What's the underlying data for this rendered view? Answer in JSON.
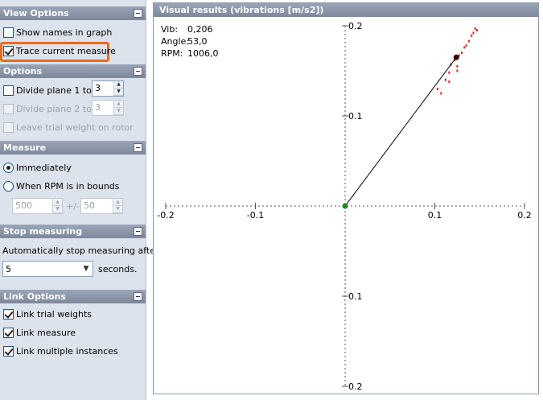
{
  "view_options": {
    "title": "View Options",
    "show_names_label": "Show names in graph",
    "show_names_checked": false,
    "trace_label": "Trace current measure",
    "trace_checked": true
  },
  "options": {
    "title": "Options",
    "divide1_label": "Divide plane 1 to",
    "divide1_value": "3",
    "divide2_label": "Divide plane 2 to",
    "divide2_value": "3",
    "leave_label": "Leave trial weight on rotor"
  },
  "measure": {
    "title": "Measure",
    "immediately_label": "Immediately",
    "rpm_label": "When RPM is in bounds",
    "rpm_value": "500",
    "tolerance_sep": "+/-",
    "tolerance_value": "50"
  },
  "stop": {
    "title": "Stop measuring",
    "desc": "Automatically stop measuring after",
    "value": "5",
    "unit": "seconds."
  },
  "link": {
    "title": "Link Options",
    "trial_label": "Link trial weights",
    "measure_label": "Link measure",
    "multi_label": "Link multiple instances"
  },
  "graph": {
    "title": "Visual results (vibrations [m/s2])",
    "vib_label": "Vib:",
    "vib_value": "0,206",
    "angle_label": "Angle:",
    "angle_value": "53,0",
    "rpm_label": "RPM:",
    "rpm_value": "1006,0"
  },
  "chart_data": {
    "type": "scatter",
    "xlim": [
      -0.2,
      0.2
    ],
    "ylim": [
      -0.2,
      0.2
    ],
    "x_ticks": [
      "-0.2",
      "-0.1",
      "0.1",
      "0.2"
    ],
    "y_ticks": [
      "0.2",
      "0.1",
      "0.1",
      "0.2"
    ],
    "grid": false,
    "origin_point": {
      "x": 0,
      "y": 0,
      "color": "#1a8a1a"
    },
    "current_point": {
      "x": 0.124,
      "y": 0.165,
      "color": "#3a0000"
    },
    "trace_color": "#e02020",
    "trace_points": [
      {
        "x": 0.145,
        "y": 0.197
      },
      {
        "x": 0.147,
        "y": 0.195
      },
      {
        "x": 0.143,
        "y": 0.192
      },
      {
        "x": 0.141,
        "y": 0.189
      },
      {
        "x": 0.138,
        "y": 0.183
      },
      {
        "x": 0.135,
        "y": 0.178
      },
      {
        "x": 0.133,
        "y": 0.176
      },
      {
        "x": 0.13,
        "y": 0.17
      },
      {
        "x": 0.127,
        "y": 0.167
      },
      {
        "x": 0.122,
        "y": 0.162
      },
      {
        "x": 0.125,
        "y": 0.155
      },
      {
        "x": 0.118,
        "y": 0.157
      },
      {
        "x": 0.125,
        "y": 0.15
      },
      {
        "x": 0.116,
        "y": 0.148
      },
      {
        "x": 0.112,
        "y": 0.14
      },
      {
        "x": 0.116,
        "y": 0.138
      },
      {
        "x": 0.103,
        "y": 0.13
      },
      {
        "x": 0.107,
        "y": 0.125
      }
    ]
  }
}
